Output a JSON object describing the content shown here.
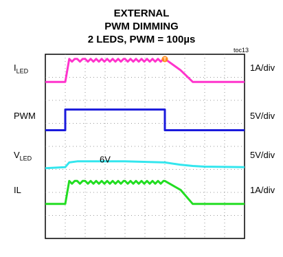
{
  "title": {
    "line1": "EXTERNAL",
    "line2": "PWM DIMMING",
    "line3": "2 LEDS, PWM = 100µs"
  },
  "figure_id": "toc13",
  "trigger_marker": "T",
  "chart_data": {
    "type": "line",
    "title": "EXTERNAL PWM DIMMING 2 LEDS, PWM = 100µs",
    "grid": true,
    "divisions": {
      "x": 10,
      "y": 8
    },
    "time": [
      0,
      1.0,
      1.2,
      1.6,
      2.0,
      4.0,
      6.0,
      6.8,
      7.4,
      8.0,
      10.0
    ],
    "time_unit": "div",
    "annotation": "6V",
    "colors": {
      "ILED": "#ff33cc",
      "PWM": "#1a1adc",
      "VLED": "#33e6ee",
      "IL": "#22dd22"
    },
    "series": [
      {
        "name": "ILED",
        "label_main": "I",
        "label_sub": "LED",
        "scale": "1A/div",
        "ground_div": 1.2,
        "values_div": [
          0,
          0,
          1.0,
          1.0,
          1.0,
          1.0,
          1.0,
          0.5,
          0,
          0,
          0
        ],
        "ripple_div": 0.12
      },
      {
        "name": "PWM",
        "label_main": "PWM",
        "label_sub": "",
        "scale": "5V/div",
        "ground_div": 3.3,
        "values_div": [
          0,
          0.9,
          0.9,
          0.9,
          0.9,
          0.9,
          0,
          0,
          0,
          0,
          0
        ],
        "ripple_div": 0
      },
      {
        "name": "VLED",
        "label_main": "V",
        "label_sub": "LED",
        "scale": "5V/div",
        "ground_div": 5.0,
        "values_div": [
          0.05,
          0.1,
          0.3,
          0.35,
          0.35,
          0.35,
          0.3,
          0.2,
          0.15,
          0.12,
          0.1
        ],
        "ripple_div": 0
      },
      {
        "name": "IL",
        "label_main": "IL",
        "label_sub": "",
        "scale": "1A/div",
        "ground_div": 6.5,
        "values_div": [
          0,
          0,
          1.0,
          1.0,
          1.0,
          1.0,
          1.0,
          0.6,
          0,
          0,
          0
        ],
        "ripple_div": 0.12
      }
    ]
  }
}
